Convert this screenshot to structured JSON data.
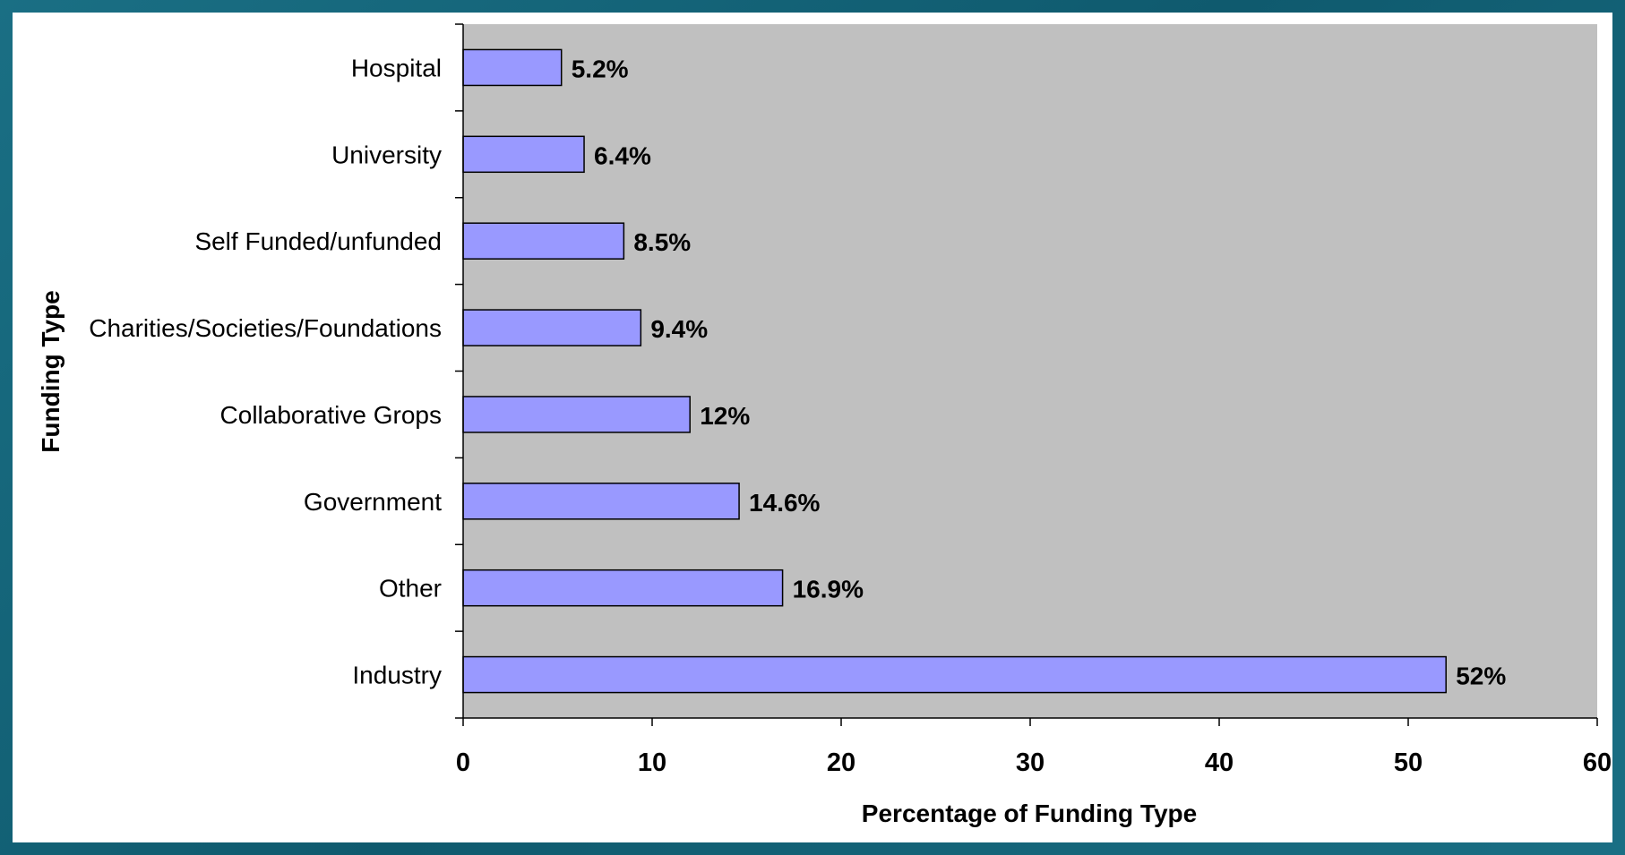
{
  "chart_data": {
    "type": "bar",
    "orientation": "horizontal",
    "categories": [
      "Hospital",
      "University",
      "Self Funded/unfunded",
      "Charities/Societies/Foundations",
      "Collaborative Grops",
      "Government",
      "Other",
      "Industry"
    ],
    "values": [
      5.2,
      6.4,
      8.5,
      9.4,
      12,
      14.6,
      16.9,
      52
    ],
    "data_labels": [
      "5.2%",
      "6.4%",
      "8.5%",
      "9.4%",
      "12%",
      "14.6%",
      "16.9%",
      "52%"
    ],
    "xlabel": "Percentage of Funding Type",
    "ylabel": "Funding Type",
    "xlim": [
      0,
      60
    ],
    "xticks": [
      0,
      10,
      20,
      30,
      40,
      50,
      60
    ],
    "grid": false,
    "colors": {
      "bar_fill": "#9999ff",
      "plot_bg": "#c0c0c0",
      "frame_bg": "#1a6f84"
    }
  }
}
